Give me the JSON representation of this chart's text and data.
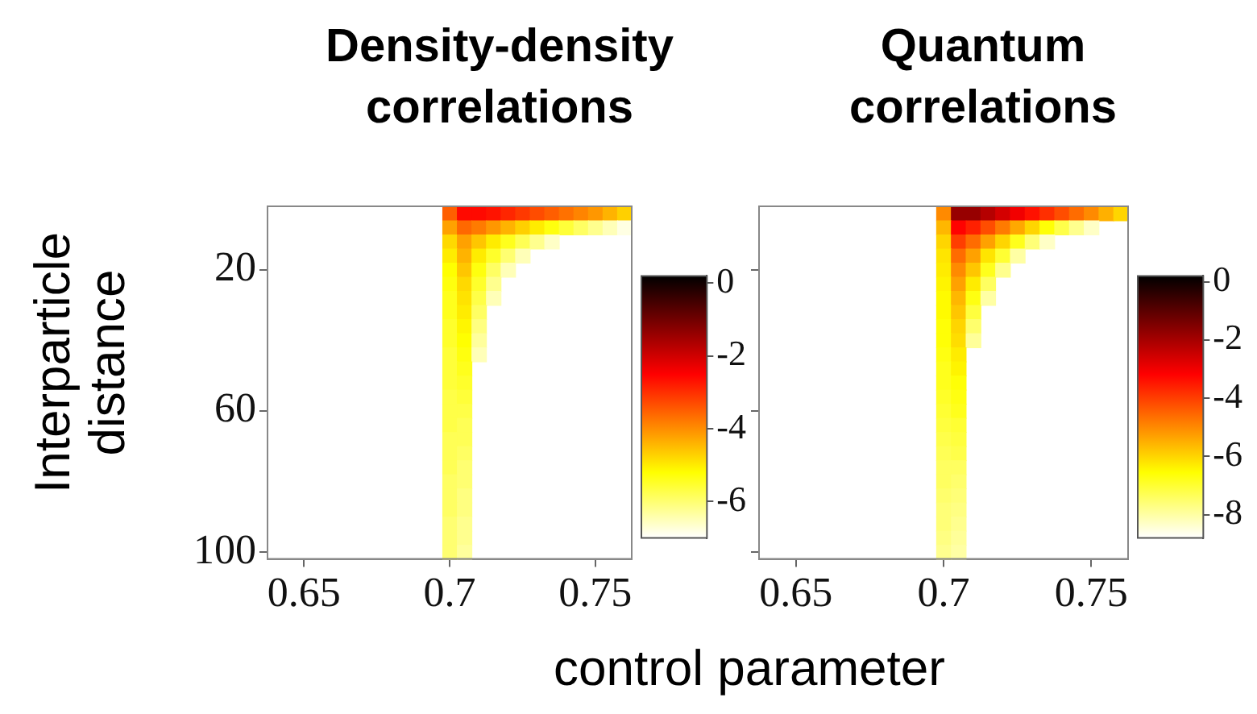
{
  "chart_data": [
    {
      "type": "heatmap",
      "title": "Density-density correlations",
      "xlabel": "control parameter",
      "ylabel": "Interparticle distance",
      "categories": [
        null,
        null,
        "0.65",
        null,
        null,
        null,
        null,
        null,
        null,
        null,
        null,
        null,
        "0.7",
        null,
        null,
        null,
        null,
        null,
        null,
        null,
        null,
        null,
        "0.75",
        null,
        null
      ],
      "y_categories": [
        null,
        null,
        null,
        null,
        "20",
        null,
        null,
        null,
        null,
        null,
        null,
        null,
        null,
        null,
        "60",
        null,
        null,
        null,
        null,
        null,
        null,
        null,
        null,
        null,
        "100"
      ],
      "clim": [
        -7,
        0.2
      ],
      "cticks": [
        0,
        -2,
        -4,
        -6
      ],
      "cells": [
        [
          null,
          null,
          null,
          null,
          null,
          null,
          null,
          null,
          null,
          null,
          null,
          null,
          -3.5,
          -2.6,
          -2.6,
          -2.7,
          -2.9,
          -3.1,
          -3.3,
          -3.5,
          -3.7,
          -3.9,
          -4.1,
          -4.4,
          -4.7
        ],
        [
          null,
          null,
          null,
          null,
          null,
          null,
          null,
          null,
          null,
          null,
          null,
          null,
          -4.2,
          -3.6,
          -3.8,
          -4.1,
          -4.4,
          -4.7,
          -5,
          -5.3,
          -5.6,
          -5.9,
          -6.2,
          -6.5,
          -6.8
        ],
        [
          null,
          null,
          null,
          null,
          null,
          null,
          null,
          null,
          null,
          null,
          null,
          null,
          -4.8,
          -4.2,
          -4.6,
          -5,
          -5.4,
          -5.8,
          -6.2,
          -6.6,
          null,
          null,
          null,
          null,
          null
        ],
        [
          null,
          null,
          null,
          null,
          null,
          null,
          null,
          null,
          null,
          null,
          null,
          null,
          -5,
          -4.4,
          -5,
          -5.5,
          -6,
          -6.5,
          null,
          null,
          null,
          null,
          null,
          null,
          null
        ],
        [
          null,
          null,
          null,
          null,
          null,
          null,
          null,
          null,
          null,
          null,
          null,
          null,
          -5.2,
          -4.6,
          -5.3,
          -5.9,
          -6.5,
          null,
          null,
          null,
          null,
          null,
          null,
          null,
          null
        ],
        [
          null,
          null,
          null,
          null,
          null,
          null,
          null,
          null,
          null,
          null,
          null,
          null,
          -5.3,
          -4.8,
          -5.5,
          -6.2,
          null,
          null,
          null,
          null,
          null,
          null,
          null,
          null,
          null
        ],
        [
          null,
          null,
          null,
          null,
          null,
          null,
          null,
          null,
          null,
          null,
          null,
          null,
          -5.4,
          -4.9,
          -5.7,
          -6.5,
          null,
          null,
          null,
          null,
          null,
          null,
          null,
          null,
          null
        ],
        [
          null,
          null,
          null,
          null,
          null,
          null,
          null,
          null,
          null,
          null,
          null,
          null,
          -5.4,
          -5,
          -5.9,
          null,
          null,
          null,
          null,
          null,
          null,
          null,
          null,
          null,
          null
        ],
        [
          null,
          null,
          null,
          null,
          null,
          null,
          null,
          null,
          null,
          null,
          null,
          null,
          -5.5,
          -5.1,
          -6.1,
          null,
          null,
          null,
          null,
          null,
          null,
          null,
          null,
          null,
          null
        ],
        [
          null,
          null,
          null,
          null,
          null,
          null,
          null,
          null,
          null,
          null,
          null,
          null,
          -5.5,
          -5.2,
          -6.3,
          null,
          null,
          null,
          null,
          null,
          null,
          null,
          null,
          null,
          null
        ],
        [
          null,
          null,
          null,
          null,
          null,
          null,
          null,
          null,
          null,
          null,
          null,
          null,
          -5.6,
          -5.3,
          -6.5,
          null,
          null,
          null,
          null,
          null,
          null,
          null,
          null,
          null,
          null
        ],
        [
          null,
          null,
          null,
          null,
          null,
          null,
          null,
          null,
          null,
          null,
          null,
          null,
          -5.6,
          -5.4,
          null,
          null,
          null,
          null,
          null,
          null,
          null,
          null,
          null,
          null,
          null
        ],
        [
          null,
          null,
          null,
          null,
          null,
          null,
          null,
          null,
          null,
          null,
          null,
          null,
          -5.6,
          -5.5,
          null,
          null,
          null,
          null,
          null,
          null,
          null,
          null,
          null,
          null,
          null
        ],
        [
          null,
          null,
          null,
          null,
          null,
          null,
          null,
          null,
          null,
          null,
          null,
          null,
          -5.7,
          -5.6,
          null,
          null,
          null,
          null,
          null,
          null,
          null,
          null,
          null,
          null,
          null
        ],
        [
          null,
          null,
          null,
          null,
          null,
          null,
          null,
          null,
          null,
          null,
          null,
          null,
          -5.7,
          -5.7,
          null,
          null,
          null,
          null,
          null,
          null,
          null,
          null,
          null,
          null,
          null
        ],
        [
          null,
          null,
          null,
          null,
          null,
          null,
          null,
          null,
          null,
          null,
          null,
          null,
          -5.7,
          -5.8,
          null,
          null,
          null,
          null,
          null,
          null,
          null,
          null,
          null,
          null,
          null
        ],
        [
          null,
          null,
          null,
          null,
          null,
          null,
          null,
          null,
          null,
          null,
          null,
          null,
          -5.8,
          -5.8,
          null,
          null,
          null,
          null,
          null,
          null,
          null,
          null,
          null,
          null,
          null
        ],
        [
          null,
          null,
          null,
          null,
          null,
          null,
          null,
          null,
          null,
          null,
          null,
          null,
          -5.8,
          -5.9,
          null,
          null,
          null,
          null,
          null,
          null,
          null,
          null,
          null,
          null,
          null
        ],
        [
          null,
          null,
          null,
          null,
          null,
          null,
          null,
          null,
          null,
          null,
          null,
          null,
          -5.8,
          -6,
          null,
          null,
          null,
          null,
          null,
          null,
          null,
          null,
          null,
          null,
          null
        ],
        [
          null,
          null,
          null,
          null,
          null,
          null,
          null,
          null,
          null,
          null,
          null,
          null,
          -5.9,
          -6,
          null,
          null,
          null,
          null,
          null,
          null,
          null,
          null,
          null,
          null,
          null
        ],
        [
          null,
          null,
          null,
          null,
          null,
          null,
          null,
          null,
          null,
          null,
          null,
          null,
          -5.9,
          -6.1,
          null,
          null,
          null,
          null,
          null,
          null,
          null,
          null,
          null,
          null,
          null
        ],
        [
          null,
          null,
          null,
          null,
          null,
          null,
          null,
          null,
          null,
          null,
          null,
          null,
          -5.9,
          -6.1,
          null,
          null,
          null,
          null,
          null,
          null,
          null,
          null,
          null,
          null,
          null
        ],
        [
          null,
          null,
          null,
          null,
          null,
          null,
          null,
          null,
          null,
          null,
          null,
          null,
          -6,
          -6.2,
          null,
          null,
          null,
          null,
          null,
          null,
          null,
          null,
          null,
          null,
          null
        ],
        [
          null,
          null,
          null,
          null,
          null,
          null,
          null,
          null,
          null,
          null,
          null,
          null,
          -6,
          -6.2,
          null,
          null,
          null,
          null,
          null,
          null,
          null,
          null,
          null,
          null,
          null
        ],
        [
          null,
          null,
          null,
          null,
          null,
          null,
          null,
          null,
          null,
          null,
          null,
          null,
          -6,
          -6.3,
          null,
          null,
          null,
          null,
          null,
          null,
          null,
          null,
          null,
          null,
          null
        ]
      ]
    },
    {
      "type": "heatmap",
      "title": "Quantum correlations",
      "tick_labels": "x",
      "categories": [
        null,
        null,
        "0.65",
        null,
        null,
        null,
        null,
        null,
        null,
        null,
        null,
        null,
        "0.7",
        null,
        null,
        null,
        null,
        null,
        null,
        null,
        null,
        null,
        "0.75",
        null,
        null
      ],
      "y_categories": [
        null,
        null,
        null,
        null,
        "20",
        null,
        null,
        null,
        null,
        null,
        null,
        null,
        null,
        null,
        "60",
        null,
        null,
        null,
        null,
        null,
        null,
        null,
        null,
        null,
        "100"
      ],
      "clim": [
        -8.8,
        0.2
      ],
      "cticks": [
        0,
        -2,
        -4,
        -6,
        -8
      ],
      "cells": [
        [
          null,
          null,
          null,
          null,
          null,
          null,
          null,
          null,
          null,
          null,
          null,
          null,
          -5,
          -1.8,
          -1.8,
          -2.2,
          -2.6,
          -3,
          -3.4,
          -3.8,
          -4.2,
          -4.6,
          -5,
          -5.5,
          -6
        ],
        [
          null,
          null,
          null,
          null,
          null,
          null,
          null,
          null,
          null,
          null,
          null,
          null,
          -5.6,
          -3.2,
          -3.6,
          -4.2,
          -4.8,
          -5.4,
          -6,
          -6.6,
          -7.2,
          -7.8,
          -8.3,
          null,
          null
        ],
        [
          null,
          null,
          null,
          null,
          null,
          null,
          null,
          null,
          null,
          null,
          null,
          null,
          -6,
          -4,
          -4.6,
          -5.3,
          -6,
          -6.8,
          -7.6,
          -8.3,
          null,
          null,
          null,
          null,
          null
        ],
        [
          null,
          null,
          null,
          null,
          null,
          null,
          null,
          null,
          null,
          null,
          null,
          null,
          -6.2,
          -4.6,
          -5.3,
          -6.2,
          -7,
          -8,
          null,
          null,
          null,
          null,
          null,
          null,
          null
        ],
        [
          null,
          null,
          null,
          null,
          null,
          null,
          null,
          null,
          null,
          null,
          null,
          null,
          -6.3,
          -5,
          -5.8,
          -6.8,
          -7.8,
          null,
          null,
          null,
          null,
          null,
          null,
          null,
          null
        ],
        [
          null,
          null,
          null,
          null,
          null,
          null,
          null,
          null,
          null,
          null,
          null,
          null,
          -6.4,
          -5.3,
          -6.3,
          -7.4,
          null,
          null,
          null,
          null,
          null,
          null,
          null,
          null,
          null
        ],
        [
          null,
          null,
          null,
          null,
          null,
          null,
          null,
          null,
          null,
          null,
          null,
          null,
          -6.5,
          -5.6,
          -6.7,
          -8,
          null,
          null,
          null,
          null,
          null,
          null,
          null,
          null,
          null
        ],
        [
          null,
          null,
          null,
          null,
          null,
          null,
          null,
          null,
          null,
          null,
          null,
          null,
          -6.5,
          -5.8,
          -7.1,
          null,
          null,
          null,
          null,
          null,
          null,
          null,
          null,
          null,
          null
        ],
        [
          null,
          null,
          null,
          null,
          null,
          null,
          null,
          null,
          null,
          null,
          null,
          null,
          -6.6,
          -6,
          -7.5,
          null,
          null,
          null,
          null,
          null,
          null,
          null,
          null,
          null,
          null
        ],
        [
          null,
          null,
          null,
          null,
          null,
          null,
          null,
          null,
          null,
          null,
          null,
          null,
          -6.6,
          -6.1,
          -7.9,
          null,
          null,
          null,
          null,
          null,
          null,
          null,
          null,
          null,
          null
        ],
        [
          null,
          null,
          null,
          null,
          null,
          null,
          null,
          null,
          null,
          null,
          null,
          null,
          -6.7,
          -6.3,
          null,
          null,
          null,
          null,
          null,
          null,
          null,
          null,
          null,
          null,
          null
        ],
        [
          null,
          null,
          null,
          null,
          null,
          null,
          null,
          null,
          null,
          null,
          null,
          null,
          -6.8,
          -6.4,
          null,
          null,
          null,
          null,
          null,
          null,
          null,
          null,
          null,
          null,
          null
        ],
        [
          null,
          null,
          null,
          null,
          null,
          null,
          null,
          null,
          null,
          null,
          null,
          null,
          -6.8,
          -6.6,
          null,
          null,
          null,
          null,
          null,
          null,
          null,
          null,
          null,
          null,
          null
        ],
        [
          null,
          null,
          null,
          null,
          null,
          null,
          null,
          null,
          null,
          null,
          null,
          null,
          -6.9,
          -6.7,
          null,
          null,
          null,
          null,
          null,
          null,
          null,
          null,
          null,
          null,
          null
        ],
        [
          null,
          null,
          null,
          null,
          null,
          null,
          null,
          null,
          null,
          null,
          null,
          null,
          -7,
          -6.8,
          null,
          null,
          null,
          null,
          null,
          null,
          null,
          null,
          null,
          null,
          null
        ],
        [
          null,
          null,
          null,
          null,
          null,
          null,
          null,
          null,
          null,
          null,
          null,
          null,
          -7.1,
          -7,
          null,
          null,
          null,
          null,
          null,
          null,
          null,
          null,
          null,
          null,
          null
        ],
        [
          null,
          null,
          null,
          null,
          null,
          null,
          null,
          null,
          null,
          null,
          null,
          null,
          -7.2,
          -7.1,
          null,
          null,
          null,
          null,
          null,
          null,
          null,
          null,
          null,
          null,
          null
        ],
        [
          null,
          null,
          null,
          null,
          null,
          null,
          null,
          null,
          null,
          null,
          null,
          null,
          -7.3,
          -7.2,
          null,
          null,
          null,
          null,
          null,
          null,
          null,
          null,
          null,
          null,
          null
        ],
        [
          null,
          null,
          null,
          null,
          null,
          null,
          null,
          null,
          null,
          null,
          null,
          null,
          -7.4,
          -7.4,
          null,
          null,
          null,
          null,
          null,
          null,
          null,
          null,
          null,
          null,
          null
        ],
        [
          null,
          null,
          null,
          null,
          null,
          null,
          null,
          null,
          null,
          null,
          null,
          null,
          -7.4,
          -7.5,
          null,
          null,
          null,
          null,
          null,
          null,
          null,
          null,
          null,
          null,
          null
        ],
        [
          null,
          null,
          null,
          null,
          null,
          null,
          null,
          null,
          null,
          null,
          null,
          null,
          -7.5,
          -7.6,
          null,
          null,
          null,
          null,
          null,
          null,
          null,
          null,
          null,
          null,
          null
        ],
        [
          null,
          null,
          null,
          null,
          null,
          null,
          null,
          null,
          null,
          null,
          null,
          null,
          -7.6,
          -7.7,
          null,
          null,
          null,
          null,
          null,
          null,
          null,
          null,
          null,
          null,
          null
        ],
        [
          null,
          null,
          null,
          null,
          null,
          null,
          null,
          null,
          null,
          null,
          null,
          null,
          -7.6,
          -7.8,
          null,
          null,
          null,
          null,
          null,
          null,
          null,
          null,
          null,
          null,
          null
        ],
        [
          null,
          null,
          null,
          null,
          null,
          null,
          null,
          null,
          null,
          null,
          null,
          null,
          -7.7,
          -7.9,
          null,
          null,
          null,
          null,
          null,
          null,
          null,
          null,
          null,
          null,
          null
        ],
        [
          null,
          null,
          null,
          null,
          null,
          null,
          null,
          null,
          null,
          null,
          null,
          null,
          -7.8,
          -8,
          null,
          null,
          null,
          null,
          null,
          null,
          null,
          null,
          null,
          null,
          null
        ]
      ]
    }
  ]
}
